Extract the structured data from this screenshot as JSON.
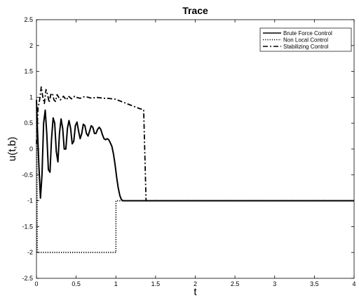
{
  "chart_data": {
    "type": "line",
    "title": "Trace",
    "xlabel": "t",
    "ylabel": "u(t,b)",
    "xlim": [
      0,
      4
    ],
    "ylim": [
      -2.5,
      2.5
    ],
    "xticks": [
      "0",
      "0.5",
      "1",
      "1.5",
      "2",
      "2.5",
      "3",
      "3.5",
      "4"
    ],
    "yticks": [
      "-2.5",
      "-2",
      "-1.5",
      "-1",
      "-0.5",
      "0",
      "0.5",
      "1",
      "1.5",
      "2",
      "2.5"
    ],
    "grid": false,
    "legend_position": "top-right",
    "series": [
      {
        "name": "Brute Force Control",
        "style": "solid",
        "color": "#000000",
        "x": [
          0,
          0.01,
          0.03,
          0.05,
          0.07,
          0.09,
          0.11,
          0.13,
          0.15,
          0.17,
          0.19,
          0.21,
          0.23,
          0.25,
          0.27,
          0.29,
          0.31,
          0.33,
          0.35,
          0.37,
          0.39,
          0.41,
          0.43,
          0.45,
          0.47,
          0.49,
          0.51,
          0.53,
          0.55,
          0.57,
          0.59,
          0.61,
          0.63,
          0.65,
          0.67,
          0.69,
          0.71,
          0.73,
          0.75,
          0.77,
          0.79,
          0.81,
          0.83,
          0.85,
          0.87,
          0.89,
          0.91,
          0.93,
          0.95,
          0.97,
          0.99,
          1.01,
          1.03,
          1.05,
          1.07,
          1.09,
          1.1,
          4.0
        ],
        "y": [
          0.95,
          0.5,
          -0.3,
          -0.95,
          -0.5,
          0.5,
          0.75,
          0.3,
          -0.4,
          -0.45,
          0.2,
          0.6,
          0.5,
          -0.05,
          -0.25,
          0.3,
          0.58,
          0.4,
          0.0,
          0.0,
          0.4,
          0.55,
          0.4,
          0.1,
          0.15,
          0.45,
          0.52,
          0.35,
          0.2,
          0.3,
          0.48,
          0.45,
          0.3,
          0.25,
          0.35,
          0.45,
          0.42,
          0.3,
          0.3,
          0.38,
          0.42,
          0.38,
          0.28,
          0.2,
          0.18,
          0.2,
          0.18,
          0.12,
          0.05,
          -0.1,
          -0.3,
          -0.55,
          -0.75,
          -0.9,
          -0.98,
          -1.0,
          -1.0,
          -1.0
        ]
      },
      {
        "name": "Non Local Control",
        "style": "dotted",
        "color": "#000000",
        "x": [
          0,
          0.005,
          0.01,
          0.02,
          0.03,
          0.04,
          0.05,
          0.07,
          0.1,
          0.2,
          0.4,
          0.6,
          0.8,
          1.0,
          1.001,
          1.1,
          1.5,
          2.0,
          2.5,
          3.0,
          3.5,
          4.0
        ],
        "y": [
          0.8,
          0.0,
          -2.0,
          -2.0,
          -2.0,
          -2.0,
          -2.0,
          -2.0,
          -2.0,
          -2.0,
          -2.0,
          -2.0,
          -2.0,
          -2.0,
          -1.0,
          -1.0,
          -1.0,
          -1.0,
          -1.0,
          -1.0,
          -1.0,
          -1.0
        ]
      },
      {
        "name": "Stabilizing Control",
        "style": "dashdot",
        "color": "#000000",
        "x": [
          0,
          0.02,
          0.04,
          0.06,
          0.08,
          0.1,
          0.12,
          0.14,
          0.16,
          0.18,
          0.2,
          0.22,
          0.24,
          0.26,
          0.28,
          0.3,
          0.32,
          0.34,
          0.36,
          0.38,
          0.4,
          0.42,
          0.44,
          0.46,
          0.48,
          0.5,
          0.55,
          0.6,
          0.65,
          0.7,
          0.75,
          0.8,
          0.85,
          0.9,
          0.95,
          1.0,
          1.05,
          1.1,
          1.15,
          1.2,
          1.25,
          1.3,
          1.35,
          1.38,
          4.0
        ],
        "y": [
          0.1,
          0.8,
          0.95,
          1.2,
          1.0,
          0.88,
          1.15,
          1.05,
          0.9,
          1.05,
          1.08,
          0.95,
          0.92,
          1.05,
          1.0,
          0.95,
          0.98,
          1.02,
          0.98,
          0.95,
          1.02,
          1.0,
          0.97,
          0.98,
          1.02,
          1.0,
          0.98,
          1.01,
          1.0,
          0.98,
          1.0,
          0.99,
          0.98,
          0.98,
          0.97,
          0.96,
          0.93,
          0.9,
          0.87,
          0.84,
          0.81,
          0.78,
          0.76,
          -1.0,
          -1.0
        ]
      }
    ]
  }
}
